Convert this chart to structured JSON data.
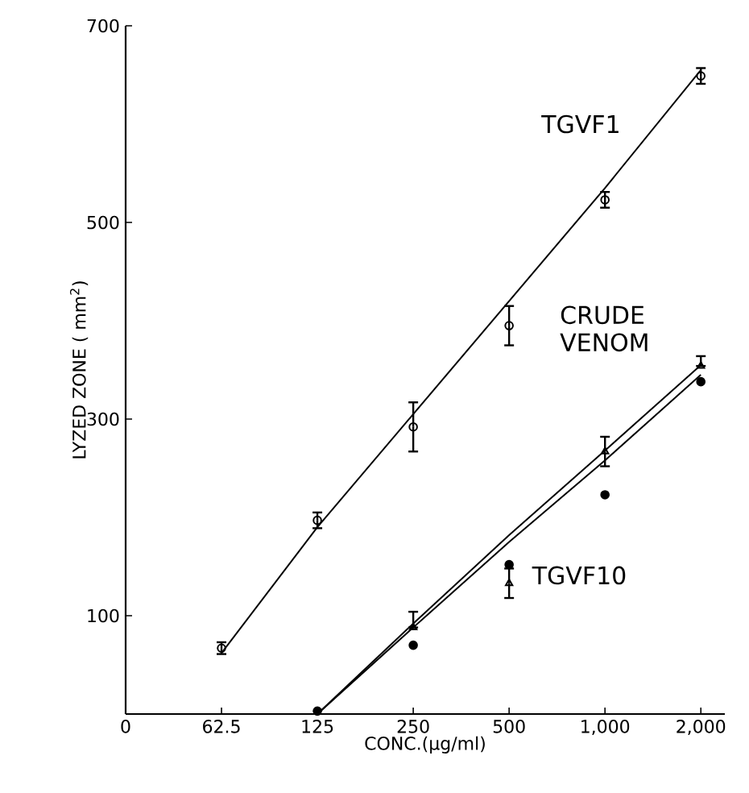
{
  "chart_data": {
    "type": "scatter",
    "xlabel": "CONC.(µg/ml)",
    "ylabel": "LYZED ZONE ( mm$^{2}$)",
    "categories": [
      "0",
      "62.5",
      "125",
      "250",
      "500",
      "1,000",
      "2,000"
    ],
    "ylim": [
      0,
      700
    ],
    "yticks": [
      100,
      300,
      500,
      700
    ],
    "series": [
      {
        "name": "TGVF1",
        "marker": "circle",
        "color": "#000000",
        "values": [
          null,
          67,
          197,
          292,
          395,
          523,
          649
        ],
        "errors": [
          null,
          6,
          8,
          25,
          20,
          8,
          8
        ]
      },
      {
        "name": "CRUDE VENOM",
        "marker": "triangle",
        "color": "#000000",
        "values": [
          null,
          null,
          null,
          88,
          133,
          267,
          354
        ],
        "errors": [
          null,
          null,
          null,
          [
            88,
            104
          ],
          15,
          15,
          [
            354,
            364
          ]
        ]
      },
      {
        "name": "TGVF10",
        "marker": "filled circle",
        "color": "#000000",
        "values": [
          null,
          null,
          3,
          70,
          152,
          223,
          338
        ]
      },
      {
        "type": "line",
        "color": "#000000",
        "values": [
          null,
          62,
          190,
          305,
          420,
          535,
          655
        ]
      },
      {
        "type": "line",
        "color": "#000000",
        "values": [
          null,
          null,
          0,
          92,
          182,
          268,
          355
        ]
      },
      {
        "type": "line",
        "color": "#000000",
        "values": [
          null,
          null,
          0,
          88,
          175,
          258,
          345
        ]
      }
    ]
  }
}
